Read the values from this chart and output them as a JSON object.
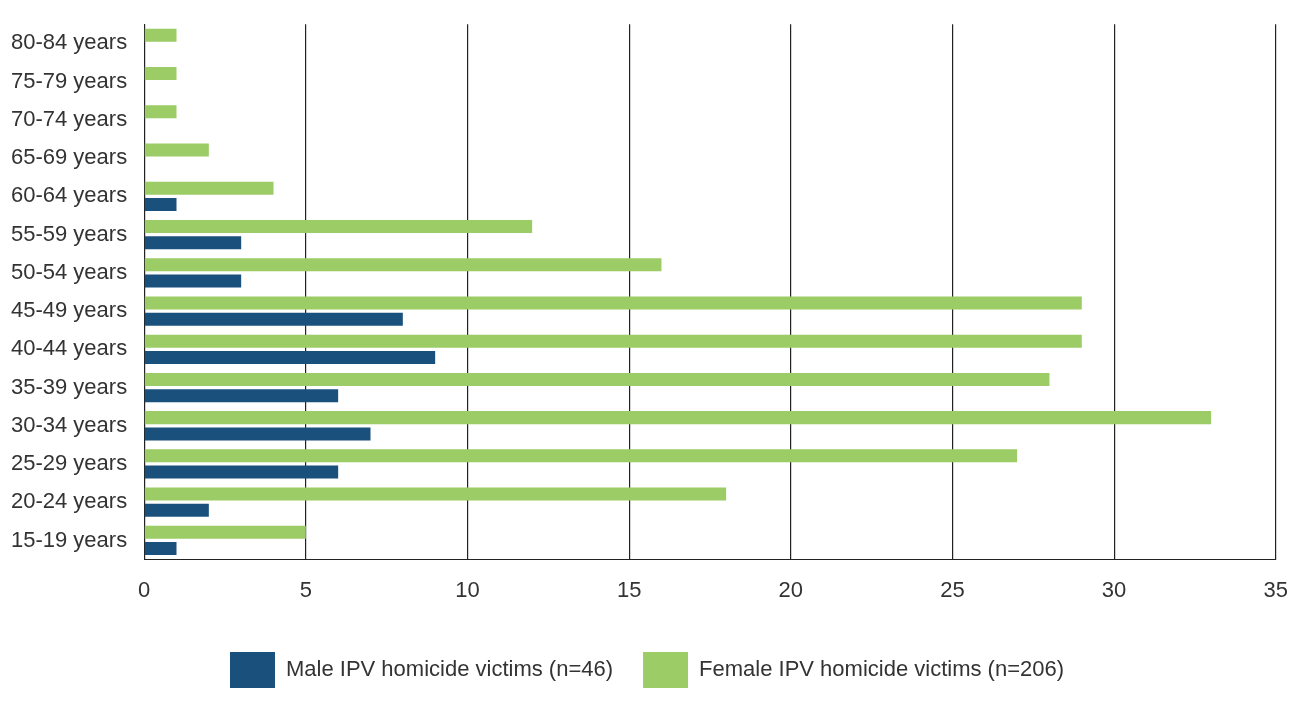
{
  "chart_data": {
    "type": "bar",
    "orientation": "horizontal",
    "categories": [
      "80-84 years",
      "75-79 years",
      "70-74 years",
      "65-69 years",
      "60-64 years",
      "55-59 years",
      "50-54 years",
      "45-49 years",
      "40-44 years",
      "35-39 years",
      "30-34 years",
      "25-29 years",
      "20-24 years",
      "15-19 years"
    ],
    "series": [
      {
        "name": "Male IPV homicide victims (n=46)",
        "color": "#1a507c",
        "values": [
          0,
          0,
          0,
          0,
          1,
          3,
          3,
          8,
          9,
          6,
          7,
          6,
          2,
          1
        ]
      },
      {
        "name": "Female IPV homicide victims (n=206)",
        "color": "#9ccc65",
        "values": [
          1,
          1,
          1,
          2,
          4,
          12,
          16,
          29,
          29,
          28,
          33,
          27,
          18,
          5
        ]
      }
    ],
    "xlim": [
      0,
      35
    ],
    "xticks": [
      0,
      5,
      10,
      15,
      20,
      25,
      30,
      35
    ],
    "grid": "x",
    "legend": "bottom"
  }
}
